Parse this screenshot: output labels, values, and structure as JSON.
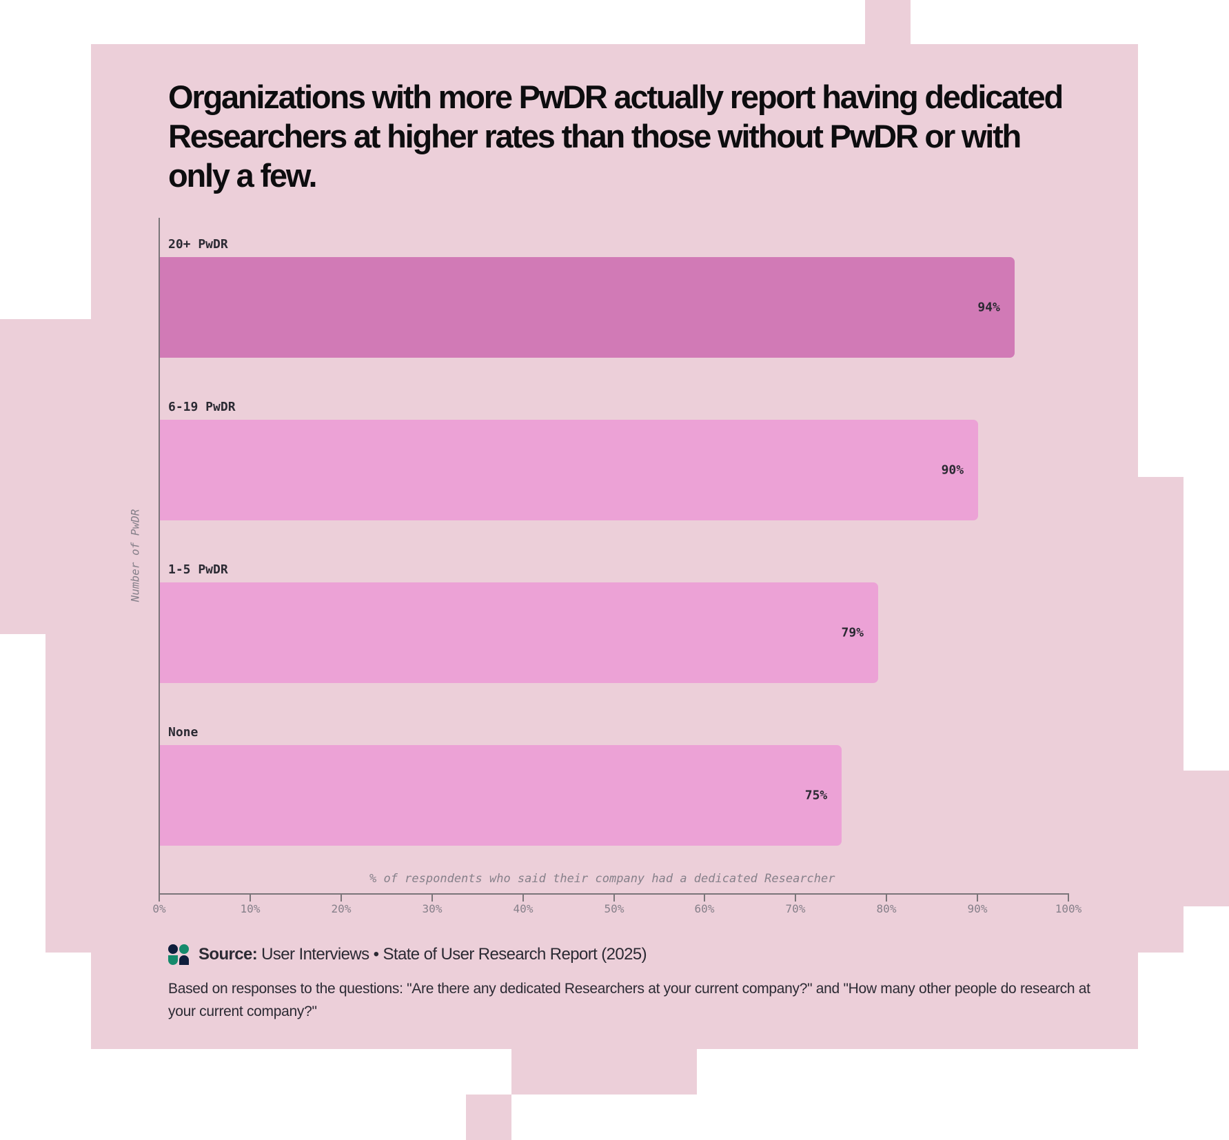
{
  "title": "Organizations with more PwDR actually report having dedicated Researchers at higher rates than those without PwDR or with only a few.",
  "chart_data": {
    "type": "bar",
    "orientation": "horizontal",
    "title": "Organizations with more PwDR actually report having dedicated Researchers at higher rates than those without PwDR or with only a few.",
    "categories": [
      "20+ PwDR",
      "6-19 PwDR",
      "1-5 PwDR",
      "None"
    ],
    "values": [
      94,
      90,
      79,
      75
    ],
    "value_labels": [
      "94%",
      "90%",
      "79%",
      "75%"
    ],
    "highlighted_category": "20+ PwDR",
    "xlabel": "% of respondents who said their company had a dedicated Researcher",
    "ylabel": "Number of PwDR",
    "xlim": [
      0,
      100
    ],
    "x_ticks": [
      "0%",
      "10%",
      "20%",
      "30%",
      "40%",
      "50%",
      "60%",
      "70%",
      "80%",
      "90%",
      "100%"
    ],
    "grid": false,
    "legend": null
  },
  "bars": [
    {
      "label": "20+ PwDR",
      "value": 94,
      "value_label": "94%",
      "highlight": true
    },
    {
      "label": "6-19 PwDR",
      "value": 90,
      "value_label": "90%",
      "highlight": false
    },
    {
      "label": "1-5 PwDR",
      "value": 79,
      "value_label": "79%",
      "highlight": false
    },
    {
      "label": "None",
      "value": 75,
      "value_label": "75%",
      "highlight": false
    }
  ],
  "axis": {
    "ylabel": "Number of PwDR",
    "xlabel": "% of respondents who said their company had a dedicated Researcher",
    "ticks": [
      "0%",
      "10%",
      "20%",
      "30%",
      "40%",
      "50%",
      "60%",
      "70%",
      "80%",
      "90%",
      "100%"
    ]
  },
  "footer": {
    "source_prefix": "Source:",
    "source_text": "User Interviews • State of User Research Report (2025)",
    "note": "Based on responses to the questions: \"Are there any dedicated Researchers at your current company?\" and \"How many other people do research at your current company?\""
  },
  "colors": {
    "panel": "#ECCFD9",
    "bar_highlight": "#D17AB6",
    "bar_default": "#ECA2D6",
    "axis": "#7A7579",
    "text": "#2B2A33",
    "logo_navy": "#0F1E3C",
    "logo_green": "#158A6C"
  }
}
